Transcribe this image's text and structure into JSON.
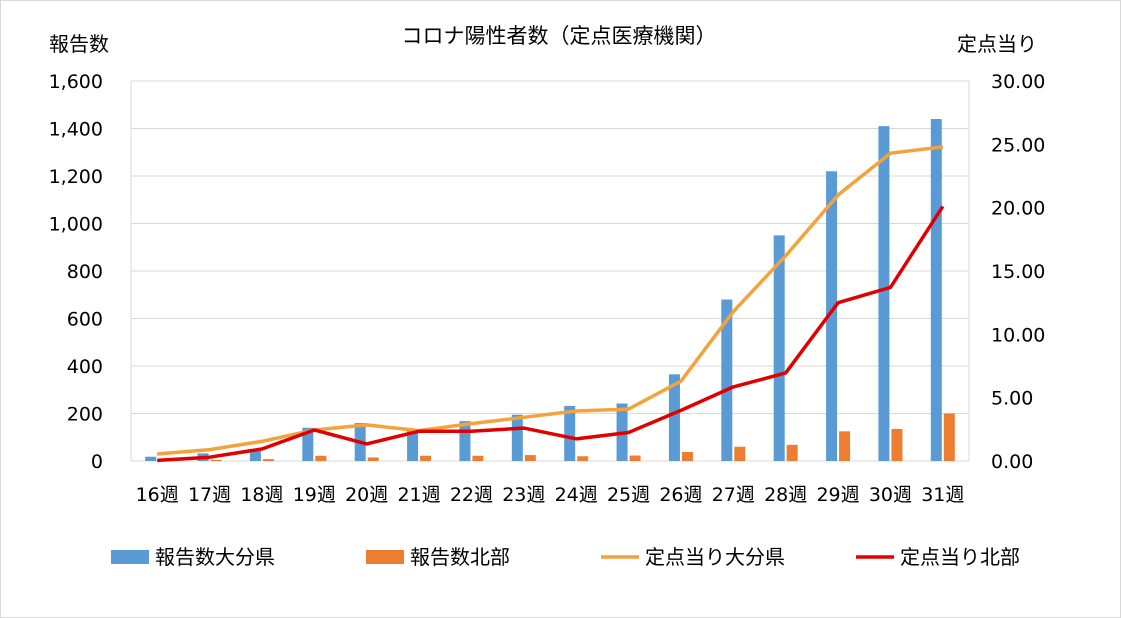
{
  "chart_data": {
    "type": "bar",
    "title": "コロナ陽性者数（定点医療機関）",
    "ylabel": "報告数",
    "y2label": "定点当り",
    "categories": [
      "16週",
      "17週",
      "18週",
      "19週",
      "20週",
      "21週",
      "22週",
      "23週",
      "24週",
      "25週",
      "26週",
      "27週",
      "28週",
      "29週",
      "30週",
      "31週"
    ],
    "ylim": [
      0,
      1600
    ],
    "y_ticks": [
      "0",
      "200",
      "400",
      "600",
      "800",
      "1,000",
      "1,200",
      "1,400",
      "1,600"
    ],
    "y2lim": [
      0,
      30
    ],
    "y2_ticks": [
      "0.00",
      "5.00",
      "10.00",
      "15.00",
      "20.00",
      "25.00",
      "30.00"
    ],
    "grid": true,
    "legend_position": "bottom",
    "series": [
      {
        "name": "報告数大分県",
        "type": "bar",
        "axis": "left",
        "color": "#5b9bd5",
        "values": [
          18,
          32,
          47,
          140,
          160,
          128,
          168,
          195,
          232,
          242,
          365,
          680,
          950,
          1220,
          1410,
          1440
        ]
      },
      {
        "name": "報告数北部",
        "type": "bar",
        "axis": "left",
        "color": "#ed7d31",
        "values": [
          3,
          5,
          8,
          22,
          15,
          22,
          22,
          25,
          20,
          23,
          38,
          60,
          68,
          125,
          135,
          200
        ]
      },
      {
        "name": "定点当り大分県",
        "type": "line",
        "axis": "right",
        "color": "#f4a23c",
        "values": [
          0.55,
          0.9,
          1.55,
          2.45,
          2.85,
          2.4,
          2.95,
          3.45,
          3.95,
          4.1,
          6.3,
          11.8,
          16.2,
          21.0,
          24.3,
          24.8
        ]
      },
      {
        "name": "定点当り北部",
        "type": "line",
        "axis": "right",
        "color": "#e00000",
        "values": [
          0.05,
          0.3,
          0.95,
          2.45,
          1.35,
          2.35,
          2.35,
          2.6,
          1.75,
          2.25,
          4.0,
          5.85,
          6.95,
          12.5,
          13.7,
          20.1
        ]
      }
    ]
  }
}
